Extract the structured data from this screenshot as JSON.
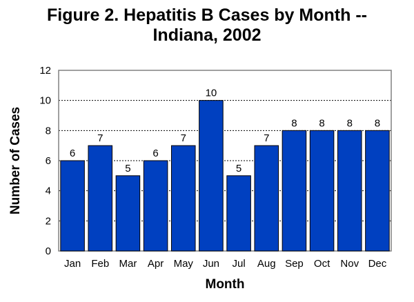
{
  "chart_data": {
    "type": "bar",
    "title_line1": "Figure 2.  Hepatitis B Cases by Month --",
    "title_line2": "Indiana, 2002",
    "categories": [
      "Jan",
      "Feb",
      "Mar",
      "Apr",
      "May",
      "Jun",
      "Jul",
      "Aug",
      "Sep",
      "Oct",
      "Nov",
      "Dec"
    ],
    "values": [
      6,
      7,
      5,
      6,
      7,
      10,
      5,
      7,
      8,
      8,
      8,
      8
    ],
    "data_labels": [
      "6",
      "7",
      "5",
      "6",
      "7",
      "10",
      "5",
      "7",
      "8",
      "8",
      "8",
      "8"
    ],
    "xlabel": "Month",
    "ylabel": "Number of Cases",
    "ylim": [
      0,
      12
    ],
    "yticks": [
      "0",
      "2",
      "4",
      "6",
      "8",
      "10",
      "12"
    ],
    "grid": "dotted horizontal at 2,4,6,8,10",
    "legend": "none",
    "bar_color": "#0040C0",
    "bar_edge_color": "#000000"
  }
}
